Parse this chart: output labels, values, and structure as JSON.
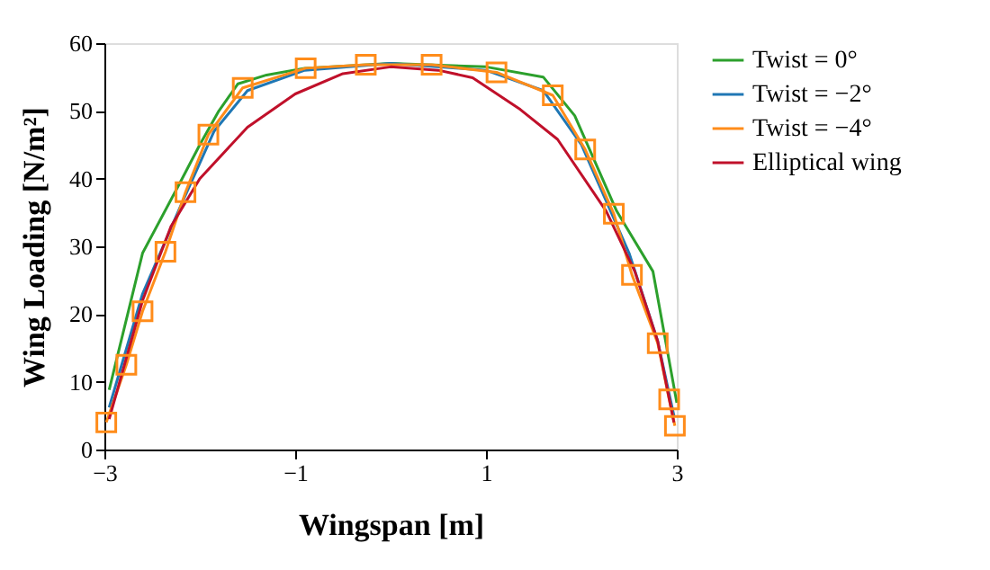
{
  "chart_data": {
    "type": "line",
    "xlabel": "Wingspan [m]",
    "ylabel": "Wing Loading [N/m²]",
    "xlim": [
      -3,
      3
    ],
    "xticks": [
      -3,
      -1,
      1,
      3
    ],
    "ylim": [
      0,
      60
    ],
    "yticks": [
      0,
      10,
      20,
      30,
      40,
      50,
      60
    ],
    "grid": false,
    "legend": "top right",
    "line_style": "solid",
    "series": [
      {
        "name": "Twist = 0°",
        "color": "#2ca02c",
        "x": [
          -2.95,
          -2.6,
          -2.2,
          -2.0,
          -1.8,
          -1.6,
          -1.3,
          -0.9,
          0,
          1,
          1.6,
          1.93,
          2.37,
          2.75,
          3.0
        ],
        "values": [
          8.8,
          29,
          39.6,
          45,
          50,
          54,
          55.3,
          56.3,
          57,
          56.5,
          55,
          49.3,
          35.2,
          26.3,
          6.9
        ]
      },
      {
        "name": "Twist = −2°",
        "color": "#1f77b4",
        "x": [
          -2.95,
          -2.6,
          -2.2,
          -1.85,
          -1.5,
          -0.9,
          0,
          1,
          1.6,
          2.0,
          2.5,
          2.8,
          2.97
        ],
        "values": [
          6.2,
          23,
          36,
          47,
          53,
          56,
          57,
          56,
          53,
          45,
          29,
          16,
          5
        ]
      },
      {
        "name": "Twist = −4°",
        "color": "#ff8c1a",
        "marker": "square",
        "x": [
          -2.98,
          -2.77,
          -2.6,
          -2.36,
          -2.15,
          -1.91,
          -1.55,
          -0.89,
          -0.26,
          0.43,
          1.11,
          1.7,
          2.04,
          2.34,
          2.53,
          2.8,
          2.92,
          2.98
        ],
        "values": [
          4,
          12.5,
          20.4,
          29.2,
          38,
          46.5,
          53.4,
          56.3,
          56.8,
          56.8,
          55.7,
          52.3,
          44.3,
          34.8,
          25.8,
          15.7,
          7.4,
          3.5
        ]
      },
      {
        "name": "Elliptical wing",
        "color": "#c0102a",
        "x": [
          -2.95,
          -2.6,
          -2.3,
          -2.0,
          -1.5,
          -1.0,
          -0.5,
          0,
          0.5,
          0.86,
          1.36,
          1.75,
          2.26,
          2.56,
          2.8,
          2.97
        ],
        "values": [
          4.5,
          22,
          33,
          40,
          47.6,
          52.5,
          55.5,
          56.5,
          56,
          54.9,
          50.2,
          45.8,
          35.2,
          26.3,
          16,
          4
        ]
      }
    ]
  }
}
